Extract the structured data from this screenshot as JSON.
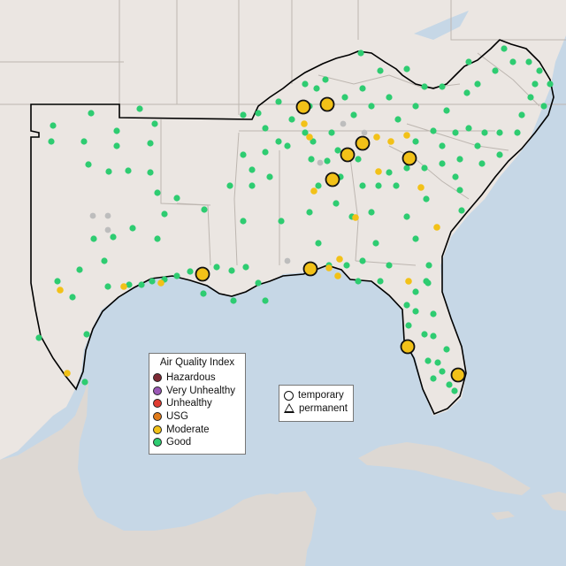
{
  "legend": {
    "title": "Air Quality Index",
    "categories": [
      {
        "label": "Hazardous",
        "color": "#7e2a35"
      },
      {
        "label": "Very Unhealthy",
        "color": "#9b59b6"
      },
      {
        "label": "Unhealthy",
        "color": "#e03c31"
      },
      {
        "label": "USG",
        "color": "#e07b1a"
      },
      {
        "label": "Moderate",
        "color": "#f2c118"
      },
      {
        "label": "Good",
        "color": "#2ecc71"
      }
    ]
  },
  "shape_legend": {
    "temporary": "temporary",
    "permanent": "permanent"
  },
  "colors": {
    "water": "#c6d7e6",
    "land": "#ebe6e2",
    "land_far": "#ddd8d3",
    "state_border": "#bdb6b0",
    "region_outline": "#000000",
    "no_data": "#bdbdbd"
  }
}
